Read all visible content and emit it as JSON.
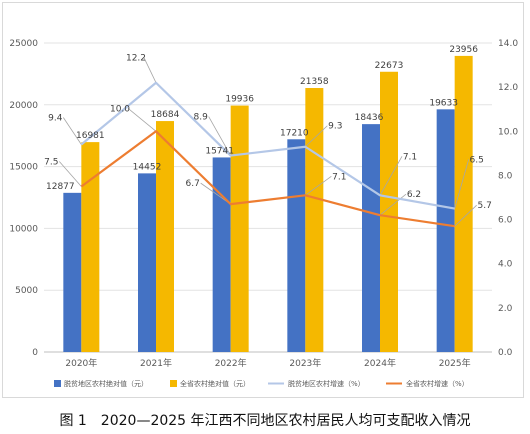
{
  "caption": "图 1　2020—2025 年江西不同地区农村居民人均可支配收入情况",
  "chart_data": {
    "type": "bar+line",
    "categories": [
      "2020年",
      "2021年",
      "2022年",
      "2023年",
      "2024年",
      "2025年"
    ],
    "left_axis": {
      "min": 0,
      "max": 25000,
      "step": 5000
    },
    "right_axis": {
      "min": 0.0,
      "max": 14.0,
      "step": 2.0
    },
    "bar_series": [
      {
        "name": "脱贫地区农村绝对值（元）",
        "color": "#4472c4",
        "values": [
          12877,
          14452,
          15741,
          17210,
          18436,
          19633
        ]
      },
      {
        "name": "全省农村绝对值（元）",
        "color": "#f5b800",
        "values": [
          16981,
          18684,
          19936,
          21358,
          22673,
          23956
        ]
      }
    ],
    "line_series": [
      {
        "name": "脱贫地区农村增速（%）",
        "color": "#b4c7e7",
        "values": [
          9.4,
          12.2,
          8.9,
          9.3,
          7.1,
          6.5
        ]
      },
      {
        "name": "全省农村增速（%）",
        "color": "#ed7d31",
        "values": [
          7.5,
          10.0,
          6.7,
          7.1,
          6.2,
          5.7
        ]
      }
    ],
    "legend_position": "bottom",
    "grid": true
  }
}
